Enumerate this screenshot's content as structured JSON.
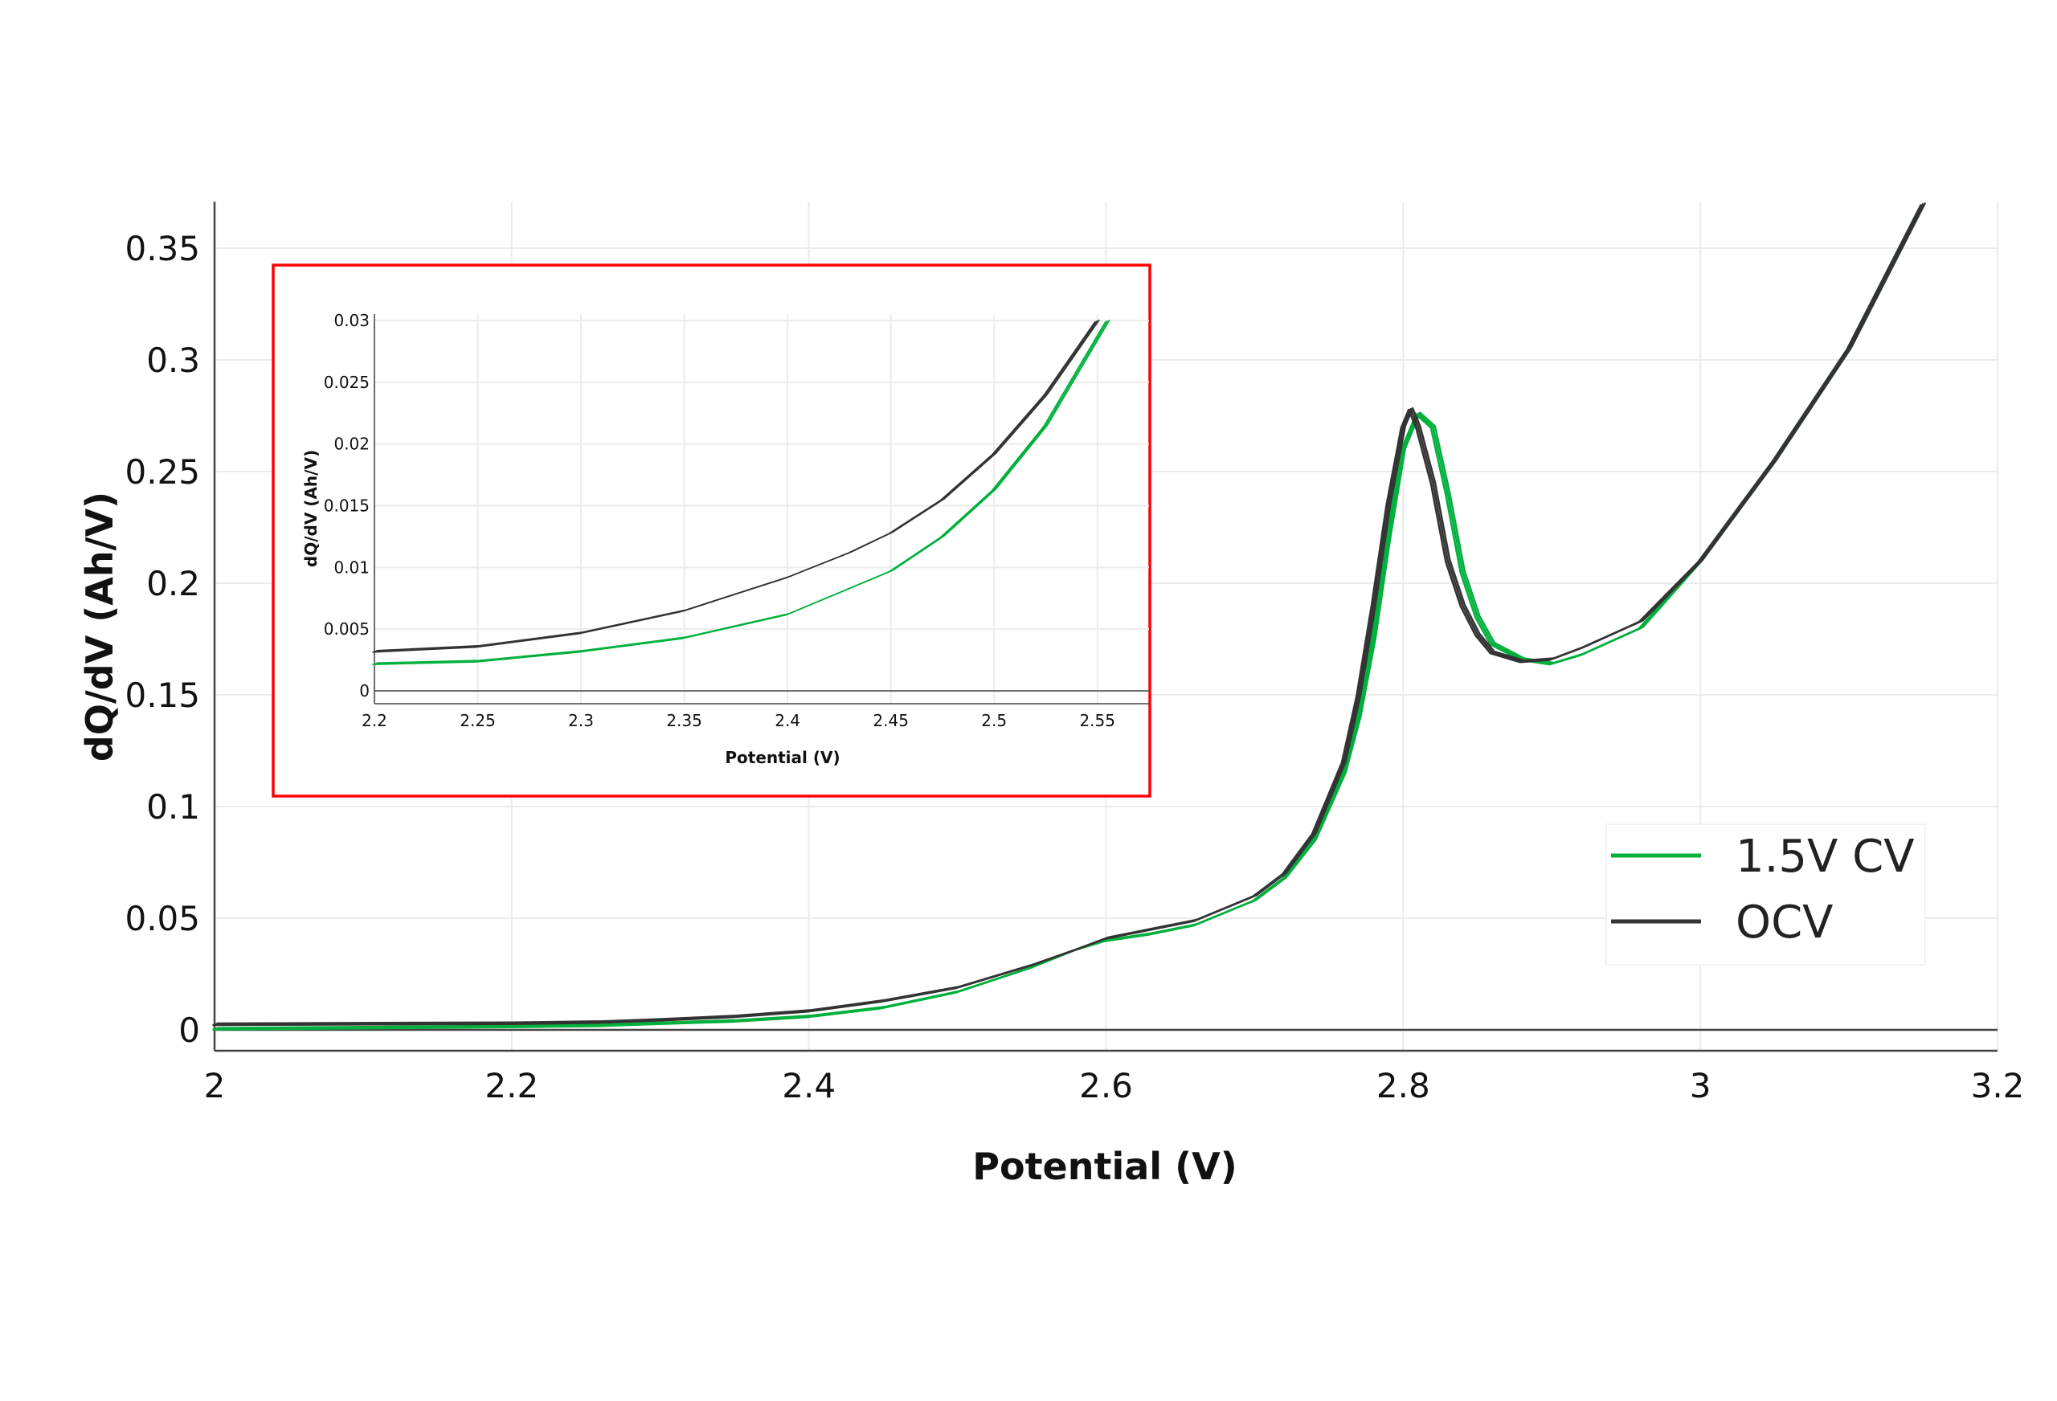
{
  "chart_data": [
    {
      "type": "line",
      "title": "",
      "xlabel": "Potential (V)",
      "ylabel": "dQ/dV (Ah/V)",
      "xlim": [
        2,
        3.2
      ],
      "ylim": [
        0,
        0.35
      ],
      "xticks": [
        "2",
        "2.2",
        "2.4",
        "2.6",
        "2.8",
        "3",
        "3.2"
      ],
      "yticks": [
        "0",
        "0.05",
        "0.1",
        "0.15",
        "0.2",
        "0.25",
        "0.3",
        "0.35"
      ],
      "grid": true,
      "legend_position": "right",
      "series": [
        {
          "name": "1.5V CV",
          "color": "#00b03c",
          "x": [
            2.0,
            2.1,
            2.2,
            2.26,
            2.3,
            2.35,
            2.4,
            2.45,
            2.5,
            2.55,
            2.58,
            2.6,
            2.63,
            2.66,
            2.7,
            2.72,
            2.74,
            2.76,
            2.77,
            2.78,
            2.79,
            2.8,
            2.81,
            2.82,
            2.83,
            2.84,
            2.85,
            2.86,
            2.88,
            2.9,
            2.92,
            2.96,
            3.0,
            3.05,
            3.1,
            3.15
          ],
          "y": [
            0.0005,
            0.001,
            0.0015,
            0.002,
            0.003,
            0.004,
            0.006,
            0.01,
            0.017,
            0.028,
            0.036,
            0.04,
            0.043,
            0.047,
            0.058,
            0.068,
            0.085,
            0.115,
            0.14,
            0.175,
            0.22,
            0.26,
            0.276,
            0.27,
            0.24,
            0.205,
            0.185,
            0.173,
            0.166,
            0.164,
            0.168,
            0.18,
            0.21,
            0.255,
            0.305,
            0.37
          ]
        },
        {
          "name": "OCV",
          "color": "#333333",
          "x": [
            2.0,
            2.2,
            2.26,
            2.3,
            2.35,
            2.4,
            2.45,
            2.5,
            2.55,
            2.58,
            2.6,
            2.63,
            2.66,
            2.7,
            2.72,
            2.74,
            2.76,
            2.77,
            2.78,
            2.79,
            2.8,
            2.805,
            2.81,
            2.82,
            2.83,
            2.84,
            2.85,
            2.86,
            2.88,
            2.9,
            2.92,
            2.96,
            3.0,
            3.05,
            3.1,
            3.15
          ],
          "y": [
            0.0025,
            0.003,
            0.0035,
            0.0045,
            0.006,
            0.0085,
            0.013,
            0.019,
            0.029,
            0.036,
            0.041,
            0.045,
            0.049,
            0.06,
            0.07,
            0.088,
            0.12,
            0.15,
            0.19,
            0.235,
            0.27,
            0.278,
            0.27,
            0.245,
            0.21,
            0.19,
            0.177,
            0.169,
            0.165,
            0.166,
            0.171,
            0.183,
            0.21,
            0.255,
            0.305,
            0.37
          ]
        }
      ]
    },
    {
      "type": "line",
      "title": "",
      "xlabel": "Potential (V)",
      "ylabel": "dQ/dV (Ah/V)",
      "xlim": [
        2.2,
        2.575
      ],
      "ylim": [
        0,
        0.03
      ],
      "xticks": [
        "2.2",
        "2.25",
        "2.3",
        "2.35",
        "2.4",
        "2.45",
        "2.5",
        "2.55"
      ],
      "yticks": [
        "0",
        "0.005",
        "0.01",
        "0.015",
        "0.02",
        "0.025",
        "0.03"
      ],
      "grid": true,
      "frame_color": "#ff0000",
      "series": [
        {
          "name": "1.5V CV",
          "color": "#00b03c",
          "x": [
            2.2,
            2.25,
            2.3,
            2.35,
            2.4,
            2.45,
            2.475,
            2.5,
            2.525,
            2.555
          ],
          "y": [
            0.0022,
            0.0024,
            0.0032,
            0.0043,
            0.0062,
            0.0097,
            0.0125,
            0.0163,
            0.0215,
            0.03
          ]
        },
        {
          "name": "OCV",
          "color": "#333333",
          "x": [
            2.2,
            2.25,
            2.3,
            2.35,
            2.4,
            2.43,
            2.45,
            2.475,
            2.5,
            2.525,
            2.55
          ],
          "y": [
            0.0032,
            0.0036,
            0.0047,
            0.0065,
            0.0092,
            0.0112,
            0.0128,
            0.0155,
            0.0192,
            0.024,
            0.03
          ]
        }
      ]
    }
  ]
}
